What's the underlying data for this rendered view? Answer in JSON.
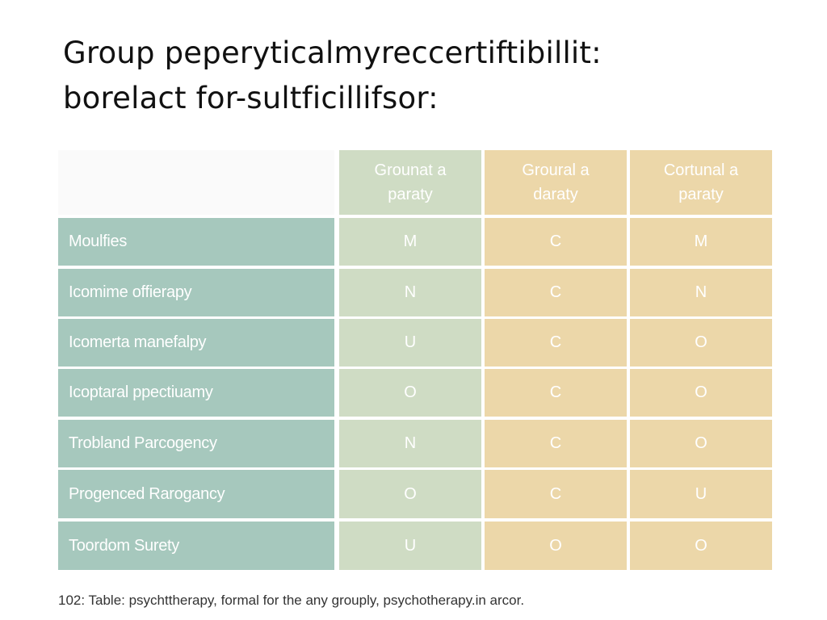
{
  "title": {
    "line1": "Group peperyticalmyreccertiftibillit:",
    "line2": "borelact for-sultficillifsor:"
  },
  "table": {
    "columns": [
      {
        "line1": "Grounat a",
        "line2": "paraty"
      },
      {
        "line1": "Groural a",
        "line2": "daraty"
      },
      {
        "line1": "Cortunal a",
        "line2": "paraty"
      }
    ],
    "rows": [
      {
        "label": "Moulfies",
        "values": [
          "M",
          "C",
          "M"
        ]
      },
      {
        "label": "Icomime offierapy",
        "values": [
          "N",
          "C",
          "N"
        ]
      },
      {
        "label": "Icomerta manefalpy",
        "values": [
          "U",
          "C",
          "O"
        ]
      },
      {
        "label": "Icoptaral ppectiuamy",
        "values": [
          "O",
          "C",
          "O"
        ]
      },
      {
        "label": "Trobland Parcogency",
        "values": [
          "N",
          "C",
          "O"
        ]
      },
      {
        "label": "Progenced Rarogancy",
        "values": [
          "O",
          "C",
          "U"
        ]
      },
      {
        "label": "Toordom Surety",
        "values": [
          "U",
          "O",
          "O"
        ]
      }
    ]
  },
  "caption": "102:  Table: psychttherapy,  formal for the any grouply, psychotherapy.in arcor."
}
